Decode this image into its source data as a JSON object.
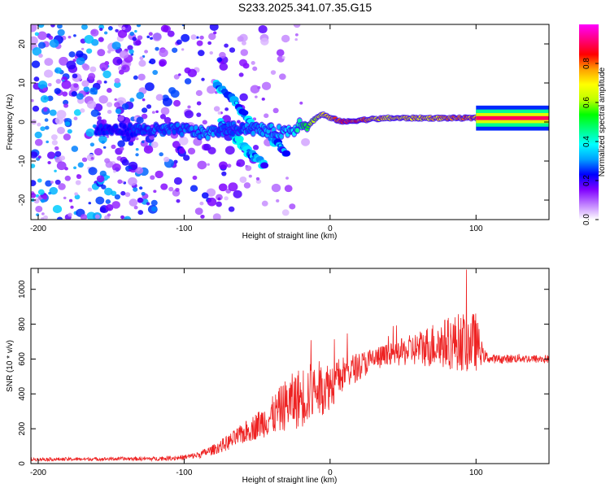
{
  "title": "S233.2025.341.07.35.G15",
  "chart_data": [
    {
      "type": "heatmap",
      "name": "spectrogram",
      "xlabel": "Height of straight line (km)",
      "ylabel": "Frequency (Hz)",
      "xlim": [
        -205,
        150
      ],
      "ylim": [
        -25,
        25
      ],
      "xticks": [
        -200,
        -100,
        0,
        100
      ],
      "xtick_labels": [
        "-200",
        "-100",
        "0",
        "100"
      ],
      "yticks": [
        20,
        10,
        0,
        -10,
        -20
      ],
      "ytick_labels": [
        "20",
        "10",
        "0",
        "-10",
        "-20"
      ],
      "colorbar": {
        "label": "Normalized spectral amplitude",
        "range": [
          0,
          1
        ],
        "ticks": [
          0.0,
          0.2,
          0.4,
          0.6,
          0.8
        ],
        "tick_labels": [
          "0.0",
          "0.2",
          "0.4",
          "0.6",
          "0.8"
        ],
        "colors": [
          "#ffffff",
          "#c080ff",
          "#8000ff",
          "#0000ff",
          "#00a0ff",
          "#00ffff",
          "#00ff80",
          "#00ff00",
          "#c0ff00",
          "#ffff00",
          "#ffa000",
          "#ff0000",
          "#ff0080",
          "#ff00ff"
        ]
      },
      "ridge": {
        "x": [
          -160,
          -140,
          -120,
          -100,
          -85,
          -75,
          -60,
          -45,
          -35,
          -25,
          -20,
          -15,
          -10,
          -5,
          0,
          10,
          20,
          40,
          60,
          80,
          100,
          120,
          150
        ],
        "frequency": [
          -2,
          -2,
          -2,
          -2,
          -3,
          -2,
          -1.5,
          -2,
          -2.5,
          -2,
          0,
          -1,
          1,
          2,
          1,
          0,
          0.5,
          1,
          1,
          1,
          1,
          1,
          1
        ],
        "amplitude": [
          0.25,
          0.25,
          0.3,
          0.3,
          0.35,
          0.3,
          0.3,
          0.35,
          0.35,
          0.4,
          0.5,
          0.6,
          0.65,
          0.7,
          0.8,
          0.9,
          0.85,
          0.75,
          0.75,
          0.8,
          0.85,
          0.9,
          0.9
        ]
      },
      "secondary_tracks": [
        {
          "x": [
            -78,
            -65,
            -55,
            -45,
            -35,
            -30
          ],
          "frequency": [
            10,
            5,
            0,
            -3,
            -6,
            -8
          ]
        },
        {
          "x": [
            -75,
            -65,
            -55,
            -45
          ],
          "frequency": [
            0,
            -4,
            -8,
            -11
          ]
        }
      ]
    },
    {
      "type": "line",
      "name": "snr",
      "xlabel": "Height of straight line (km)",
      "ylabel": "SNR (10 * v/v)",
      "xlim": [
        -205,
        150
      ],
      "ylim": [
        0,
        1120
      ],
      "xticks": [
        -200,
        -100,
        0,
        100
      ],
      "xtick_labels": [
        "-200",
        "-100",
        "0",
        "100"
      ],
      "yticks": [
        0,
        200,
        400,
        600,
        800,
        1000
      ],
      "ytick_labels": [
        "0",
        "200",
        "400",
        "600",
        "800",
        "1000"
      ],
      "series": [
        {
          "name": "SNR",
          "color": "#ee2222",
          "x": [
            -205,
            -180,
            -150,
            -120,
            -100,
            -90,
            -80,
            -70,
            -60,
            -50,
            -40,
            -30,
            -20,
            -10,
            0,
            10,
            20,
            30,
            40,
            50,
            60,
            70,
            80,
            90,
            100,
            105,
            110,
            120,
            130,
            140,
            150
          ],
          "values": [
            25,
            25,
            27,
            28,
            35,
            50,
            80,
            120,
            170,
            220,
            270,
            340,
            380,
            420,
            450,
            520,
            560,
            600,
            620,
            640,
            660,
            680,
            690,
            700,
            700,
            620,
            600,
            600,
            605,
            600,
            600
          ],
          "spread": [
            10,
            10,
            10,
            12,
            15,
            20,
            30,
            45,
            60,
            80,
            110,
            150,
            180,
            170,
            140,
            100,
            80,
            70,
            70,
            80,
            100,
            130,
            150,
            170,
            170,
            40,
            25,
            25,
            25,
            25,
            25
          ]
        }
      ]
    }
  ]
}
